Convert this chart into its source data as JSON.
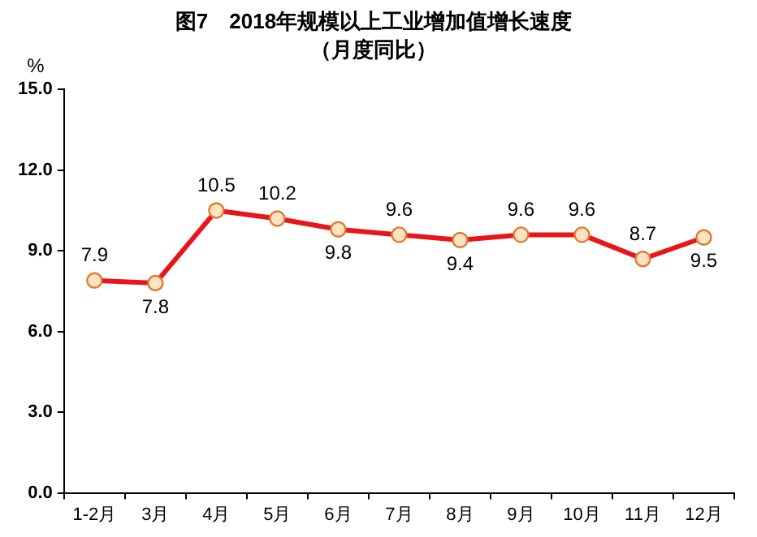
{
  "chart_data": {
    "type": "line",
    "title": "图7　2018年规模以上工业增加值增长速度",
    "subtitle": "（月度同比）",
    "ylabel": "%",
    "categories": [
      "1-2月",
      "3月",
      "4月",
      "5月",
      "6月",
      "7月",
      "8月",
      "9月",
      "10月",
      "11月",
      "12月"
    ],
    "series": [
      {
        "color": "#e8161b",
        "values": [
          7.9,
          7.8,
          10.5,
          10.2,
          9.8,
          9.6,
          9.4,
          9.6,
          9.6,
          8.7,
          9.5
        ]
      }
    ],
    "ylim": [
      0,
      15
    ],
    "yticks": [
      {
        "value": 0,
        "label": "0.0"
      },
      {
        "value": 3,
        "label": "3.0"
      },
      {
        "value": 6,
        "label": "6.0"
      },
      {
        "value": 9,
        "label": "9.0"
      },
      {
        "value": 12,
        "label": "12.0"
      },
      {
        "value": 15,
        "label": "15.0"
      }
    ],
    "grid": false,
    "legend": false,
    "marker": "circle",
    "line_style": "solid",
    "data_labels": true
  }
}
